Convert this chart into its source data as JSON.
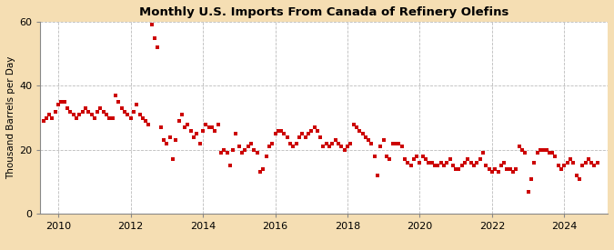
{
  "title": "Monthly U.S. Imports From Canada of Refinery Olefins",
  "ylabel": "Thousand Barrels per Day",
  "bg_color": "#f5deb3",
  "plot_bg_color": "#ffffff",
  "marker_color": "#cc0000",
  "grid_color": "#bbbbbb",
  "ylim": [
    0,
    60
  ],
  "yticks": [
    0,
    20,
    40,
    60
  ],
  "xlim": [
    2009.5,
    2025.2
  ],
  "xticks": [
    2010,
    2012,
    2014,
    2016,
    2018,
    2020,
    2022,
    2024
  ],
  "data": [
    [
      2009.583,
      29
    ],
    [
      2009.667,
      30
    ],
    [
      2009.75,
      31
    ],
    [
      2009.833,
      30
    ],
    [
      2009.917,
      32
    ],
    [
      2010.0,
      34
    ],
    [
      2010.083,
      35
    ],
    [
      2010.167,
      35
    ],
    [
      2010.25,
      33
    ],
    [
      2010.333,
      32
    ],
    [
      2010.417,
      31
    ],
    [
      2010.5,
      30
    ],
    [
      2010.583,
      31
    ],
    [
      2010.667,
      32
    ],
    [
      2010.75,
      33
    ],
    [
      2010.833,
      32
    ],
    [
      2010.917,
      31
    ],
    [
      2011.0,
      30
    ],
    [
      2011.083,
      32
    ],
    [
      2011.167,
      33
    ],
    [
      2011.25,
      32
    ],
    [
      2011.333,
      31
    ],
    [
      2011.417,
      30
    ],
    [
      2011.5,
      30
    ],
    [
      2011.583,
      37
    ],
    [
      2011.667,
      35
    ],
    [
      2011.75,
      33
    ],
    [
      2011.833,
      32
    ],
    [
      2011.917,
      31
    ],
    [
      2012.0,
      30
    ],
    [
      2012.083,
      32
    ],
    [
      2012.167,
      34
    ],
    [
      2012.25,
      31
    ],
    [
      2012.333,
      30
    ],
    [
      2012.417,
      29
    ],
    [
      2012.5,
      28
    ],
    [
      2012.583,
      59
    ],
    [
      2012.667,
      55
    ],
    [
      2012.75,
      52
    ],
    [
      2012.833,
      27
    ],
    [
      2012.917,
      23
    ],
    [
      2013.0,
      22
    ],
    [
      2013.083,
      24
    ],
    [
      2013.167,
      17
    ],
    [
      2013.25,
      23
    ],
    [
      2013.333,
      29
    ],
    [
      2013.417,
      31
    ],
    [
      2013.5,
      27
    ],
    [
      2013.583,
      28
    ],
    [
      2013.667,
      26
    ],
    [
      2013.75,
      24
    ],
    [
      2013.833,
      25
    ],
    [
      2013.917,
      22
    ],
    [
      2014.0,
      26
    ],
    [
      2014.083,
      28
    ],
    [
      2014.167,
      27
    ],
    [
      2014.25,
      27
    ],
    [
      2014.333,
      26
    ],
    [
      2014.417,
      28
    ],
    [
      2014.5,
      19
    ],
    [
      2014.583,
      20
    ],
    [
      2014.667,
      19
    ],
    [
      2014.75,
      15
    ],
    [
      2014.833,
      20
    ],
    [
      2014.917,
      25
    ],
    [
      2015.0,
      21
    ],
    [
      2015.083,
      19
    ],
    [
      2015.167,
      20
    ],
    [
      2015.25,
      21
    ],
    [
      2015.333,
      22
    ],
    [
      2015.417,
      20
    ],
    [
      2015.5,
      19
    ],
    [
      2015.583,
      13
    ],
    [
      2015.667,
      14
    ],
    [
      2015.75,
      18
    ],
    [
      2015.833,
      21
    ],
    [
      2015.917,
      22
    ],
    [
      2016.0,
      25
    ],
    [
      2016.083,
      26
    ],
    [
      2016.167,
      26
    ],
    [
      2016.25,
      25
    ],
    [
      2016.333,
      24
    ],
    [
      2016.417,
      22
    ],
    [
      2016.5,
      21
    ],
    [
      2016.583,
      22
    ],
    [
      2016.667,
      24
    ],
    [
      2016.75,
      25
    ],
    [
      2016.833,
      24
    ],
    [
      2016.917,
      25
    ],
    [
      2017.0,
      26
    ],
    [
      2017.083,
      27
    ],
    [
      2017.167,
      26
    ],
    [
      2017.25,
      24
    ],
    [
      2017.333,
      21
    ],
    [
      2017.417,
      22
    ],
    [
      2017.5,
      21
    ],
    [
      2017.583,
      22
    ],
    [
      2017.667,
      23
    ],
    [
      2017.75,
      22
    ],
    [
      2017.833,
      21
    ],
    [
      2017.917,
      20
    ],
    [
      2018.0,
      21
    ],
    [
      2018.083,
      22
    ],
    [
      2018.167,
      28
    ],
    [
      2018.25,
      27
    ],
    [
      2018.333,
      26
    ],
    [
      2018.417,
      25
    ],
    [
      2018.5,
      24
    ],
    [
      2018.583,
      23
    ],
    [
      2018.667,
      22
    ],
    [
      2018.75,
      18
    ],
    [
      2018.833,
      12
    ],
    [
      2018.917,
      21
    ],
    [
      2019.0,
      23
    ],
    [
      2019.083,
      18
    ],
    [
      2019.167,
      17
    ],
    [
      2019.25,
      22
    ],
    [
      2019.333,
      22
    ],
    [
      2019.417,
      22
    ],
    [
      2019.5,
      21
    ],
    [
      2019.583,
      17
    ],
    [
      2019.667,
      16
    ],
    [
      2019.75,
      15
    ],
    [
      2019.833,
      17
    ],
    [
      2019.917,
      18
    ],
    [
      2020.0,
      16
    ],
    [
      2020.083,
      18
    ],
    [
      2020.167,
      17
    ],
    [
      2020.25,
      16
    ],
    [
      2020.333,
      16
    ],
    [
      2020.417,
      15
    ],
    [
      2020.5,
      15
    ],
    [
      2020.583,
      16
    ],
    [
      2020.667,
      15
    ],
    [
      2020.75,
      16
    ],
    [
      2020.833,
      17
    ],
    [
      2020.917,
      15
    ],
    [
      2021.0,
      14
    ],
    [
      2021.083,
      14
    ],
    [
      2021.167,
      15
    ],
    [
      2021.25,
      16
    ],
    [
      2021.333,
      17
    ],
    [
      2021.417,
      16
    ],
    [
      2021.5,
      15
    ],
    [
      2021.583,
      16
    ],
    [
      2021.667,
      17
    ],
    [
      2021.75,
      19
    ],
    [
      2021.833,
      15
    ],
    [
      2021.917,
      14
    ],
    [
      2022.0,
      13
    ],
    [
      2022.083,
      14
    ],
    [
      2022.167,
      13
    ],
    [
      2022.25,
      15
    ],
    [
      2022.333,
      16
    ],
    [
      2022.417,
      14
    ],
    [
      2022.5,
      14
    ],
    [
      2022.583,
      13
    ],
    [
      2022.667,
      14
    ],
    [
      2022.75,
      21
    ],
    [
      2022.833,
      20
    ],
    [
      2022.917,
      19
    ],
    [
      2023.0,
      7
    ],
    [
      2023.083,
      11
    ],
    [
      2023.167,
      16
    ],
    [
      2023.25,
      19
    ],
    [
      2023.333,
      20
    ],
    [
      2023.417,
      20
    ],
    [
      2023.5,
      20
    ],
    [
      2023.583,
      19
    ],
    [
      2023.667,
      19
    ],
    [
      2023.75,
      18
    ],
    [
      2023.833,
      15
    ],
    [
      2023.917,
      14
    ],
    [
      2024.0,
      15
    ],
    [
      2024.083,
      16
    ],
    [
      2024.167,
      17
    ],
    [
      2024.25,
      16
    ],
    [
      2024.333,
      12
    ],
    [
      2024.417,
      11
    ],
    [
      2024.5,
      15
    ],
    [
      2024.583,
      16
    ],
    [
      2024.667,
      17
    ],
    [
      2024.75,
      16
    ],
    [
      2024.833,
      15
    ],
    [
      2024.917,
      16
    ]
  ]
}
